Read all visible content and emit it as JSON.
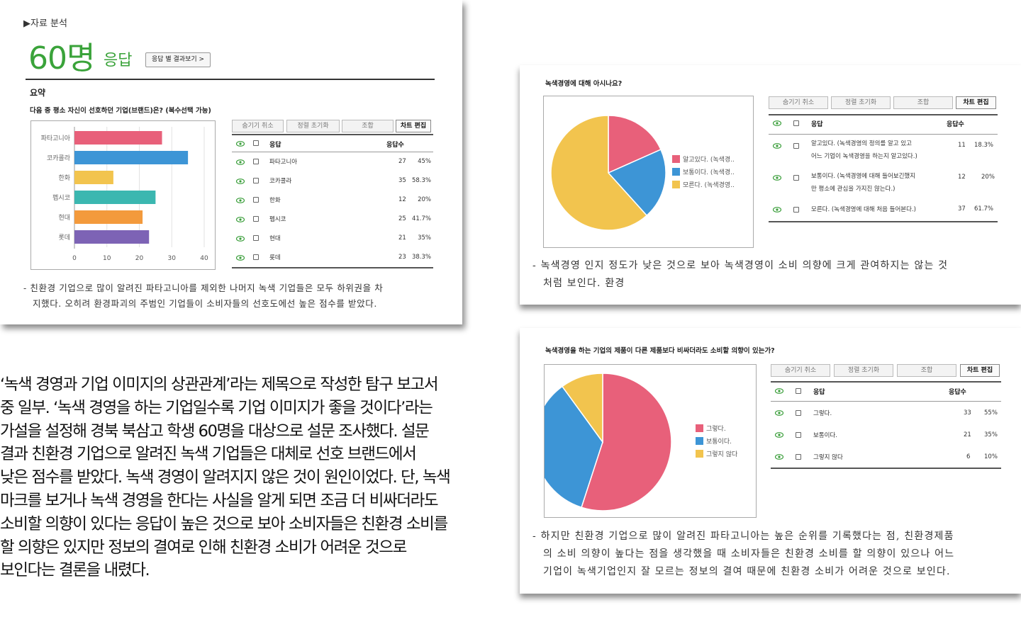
{
  "panel1": {
    "section_label": "▶자료 분석",
    "response_count": "60명",
    "response_unit": "응답",
    "view_by_response_btn": "응답 별 결과보기 >",
    "summary_title": "요약",
    "question": "다음 중 평소 자신이 선호하던 기업(브랜드)은? (복수선택 가능)",
    "toolbar": [
      "숨기기 취소",
      "정렬 초기화",
      "조합",
      "차트 편집"
    ],
    "table_header": {
      "answer": "응답",
      "count": "응답수"
    },
    "rows": [
      {
        "label": "파타고니아",
        "count": "27",
        "pct": "45%"
      },
      {
        "label": "코카콜라",
        "count": "35",
        "pct": "58.3%"
      },
      {
        "label": "한화",
        "count": "12",
        "pct": "20%"
      },
      {
        "label": "펩시코",
        "count": "25",
        "pct": "41.7%"
      },
      {
        "label": "현대",
        "count": "21",
        "pct": "35%"
      },
      {
        "label": "롯데",
        "count": "23",
        "pct": "38.3%"
      }
    ],
    "x_ticks": [
      "0",
      "10",
      "20",
      "30",
      "40"
    ],
    "note_lines": [
      "- 친환경 기업으로 많이 알려진 파타고니아를 제외한 나머지 녹색 기업들은 모두 하위권을 차",
      "지했다. 오히려 환경파괴의 주범인 기업들이 소비자들의 선호도에선 높은 점수를 받았다."
    ]
  },
  "panel2": {
    "question": "녹색경영에 대해 아시나요?",
    "toolbar": [
      "숨기기 취소",
      "정렬 초기화",
      "조합",
      "차트 편집"
    ],
    "table_header": {
      "answer": "응답",
      "count": "응답수"
    },
    "rows": [
      {
        "line1": "알고있다. (녹색경영의 정의를 알고 있고",
        "line2": "어느 기업이 녹색경영을 하는지 알고있다.)",
        "count": "11",
        "pct": "18.3%"
      },
      {
        "line1": "보통이다. (녹색경영에 대해 들어보긴했지",
        "line2": "만 평소에 관심을 가지진 않는다.)",
        "count": "12",
        "pct": "20%"
      },
      {
        "line1": "모른다. (녹색경영에 대해 처음 들어본다.)",
        "line2": "",
        "count": "37",
        "pct": "61.7%"
      }
    ],
    "legend": [
      "알고있다. (녹색경..",
      "보통이다. (녹색경..",
      "모른다. (녹색경영.."
    ],
    "note_lines": [
      "- 녹색경영 인지 정도가 낮은 것으로 보아 녹색경영이 소비 의향에 크게 관여하지는 않는 것",
      "처럼 보인다. 환경"
    ]
  },
  "panel3": {
    "question": "녹색경영을 하는 기업의 제품이 다른 제품보다 비싸더라도 소비할 의향이 있는가?",
    "toolbar": [
      "숨기기 취소",
      "정렬 초기화",
      "조합",
      "차트 편집"
    ],
    "table_header": {
      "answer": "응답",
      "count": "응답수"
    },
    "rows": [
      {
        "label": "그렇다.",
        "count": "33",
        "pct": "55%"
      },
      {
        "label": "보통이다.",
        "count": "21",
        "pct": "35%"
      },
      {
        "label": "그렇지 않다",
        "count": "6",
        "pct": "10%"
      }
    ],
    "legend": [
      "그렇다.",
      "보통이다.",
      "그렇지 않다"
    ],
    "note_lines": [
      "- 하지만 친환경 기업으로 많이 알려진 파타고니아는 높은 순위를 기록했다는 점, 친환경제품",
      "의 소비 의향이 높다는 점을 생각했을 때 소비자들은 친환경 소비를 할 의향이 있으나 어느",
      "기업이 녹색기업인지 잘 모르는 정보의 결여 때문에 친환경 소비가 어려운 것으로 보인다."
    ]
  },
  "body_lines": [
    "‘녹색 경영과 기업 이미지의 상관관계’라는 제목으로 작성한 탐구 보고서",
    "중 일부. ‘녹색 경영을 하는 기업일수록 기업 이미지가 좋을 것이다’라는",
    "가설을 설정해 경북 북삼고 학생 60명을 대상으로 설문 조사했다. 설문",
    "결과 친환경 기업으로 알려진 녹색 기업들은 대체로 선호 브랜드에서",
    "낮은 점수를 받았다. 녹색 경영이 알려지지 않은 것이 원인이었다. 단, 녹색",
    "마크를 보거나 녹색 경영을 한다는 사실을 알게 되면 조금 더 비싸더라도",
    "소비할 의향이 있다는 응답이 높은 것으로 보아 소비자들은 친환경 소비를",
    "할 의향은 있지만 정보의 결여로 인해 친환경 소비가 어려운 것으로",
    "보인다는 결론을 내렸다."
  ],
  "colors": {
    "accent_green": "#3aa33a",
    "pink": "#e8607a",
    "blue": "#3d95d6",
    "yellow": "#f2c44e",
    "teal": "#3bb7b0",
    "orange": "#f39a3c",
    "purple": "#7d63b5"
  },
  "chart_data": [
    {
      "type": "bar",
      "orientation": "horizontal",
      "categories": [
        "파타고니아",
        "코카콜라",
        "한화",
        "펩시코",
        "현대",
        "롯데"
      ],
      "values": [
        27,
        35,
        12,
        25,
        21,
        23
      ],
      "colors": [
        "#e8607a",
        "#3d95d6",
        "#f2c44e",
        "#3bb7b0",
        "#f39a3c",
        "#7d63b5"
      ],
      "xlim": [
        0,
        40
      ],
      "x_ticks": [
        0,
        10,
        20,
        30,
        40
      ],
      "grid": true
    },
    {
      "type": "pie",
      "labels": [
        "알고있다. (녹색경..",
        "보통이다. (녹색경..",
        "모른다. (녹색경영.."
      ],
      "values": [
        11,
        12,
        37
      ],
      "colors": [
        "#e8607a",
        "#3d95d6",
        "#f2c44e"
      ],
      "legend": "right"
    },
    {
      "type": "pie",
      "labels": [
        "그렇다.",
        "보통이다.",
        "그렇지 않다"
      ],
      "values": [
        33,
        21,
        6
      ],
      "colors": [
        "#e8607a",
        "#3d95d6",
        "#f2c44e"
      ],
      "legend": "right"
    }
  ]
}
